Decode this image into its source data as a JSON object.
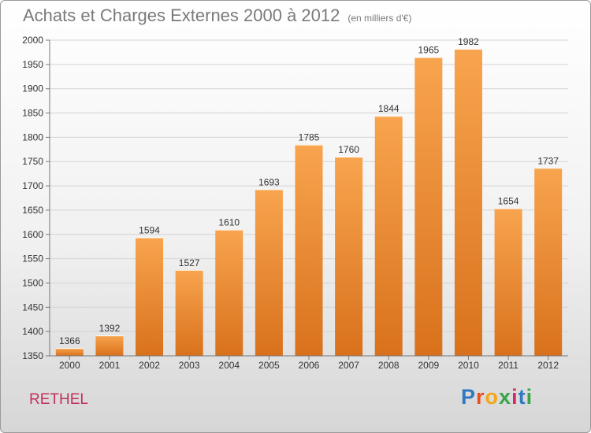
{
  "title": "Achats et Charges Externes 2000 à 2012",
  "subtitle": "(en milliers d'€)",
  "city": "RETHEL",
  "logo": {
    "text": "Proxiti",
    "letters": [
      "P",
      "r",
      "o",
      "x",
      "i",
      "t",
      "i"
    ],
    "colors": [
      "#2f79c2",
      "#e8501e",
      "#f2a71b",
      "#3aa34a",
      "#d12a6b",
      "#2f79c2",
      "#3aa34a"
    ]
  },
  "chart_data": {
    "type": "bar",
    "title": "Achats et Charges Externes 2000 à 2012",
    "subtitle": "(en milliers d'€)",
    "categories": [
      "2000",
      "2001",
      "2002",
      "2003",
      "2004",
      "2005",
      "2006",
      "2007",
      "2008",
      "2009",
      "2010",
      "2011",
      "2012"
    ],
    "values": [
      1366,
      1392,
      1594,
      1527,
      1610,
      1693,
      1785,
      1760,
      1844,
      1965,
      1982,
      1654,
      1737
    ],
    "ylim": [
      1350,
      2000
    ],
    "yticks": [
      1350,
      1400,
      1450,
      1500,
      1550,
      1600,
      1650,
      1700,
      1750,
      1800,
      1850,
      1900,
      1950,
      2000
    ],
    "grid": true,
    "bar_color": "#f0922c"
  }
}
